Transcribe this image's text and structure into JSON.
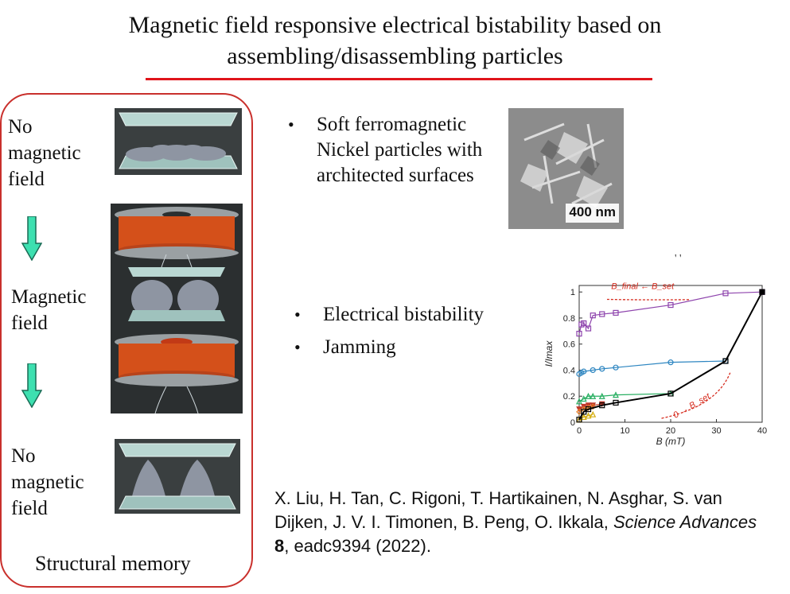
{
  "slide": {
    "title_line1": "Magnetic field responsive electrical bistability based on",
    "title_line2": "assembling/disassembling particles"
  },
  "memory_panel": {
    "state_top": [
      "No",
      "magnetic",
      "field"
    ],
    "state_middle": [
      "Magnetic",
      "field"
    ],
    "state_bottom": [
      "No",
      "magnetic",
      "field"
    ],
    "caption": "Structural memory"
  },
  "bullets_top": {
    "items": [
      "Soft ferromagnetic",
      "Nickel particles with",
      "architected surfaces"
    ]
  },
  "sem_image": {
    "scale_label": "400 nm"
  },
  "bullets_middle": {
    "items": [
      "Electrical bistability",
      "Jamming"
    ]
  },
  "stray_mark": "' '",
  "reference": {
    "authors": "X. Liu, H. Tan, C. Rigoni, T. Hartikainen, N. Asghar, S. van Dijken, J. V. I. Timonen, B. Peng, O. Ikkala,",
    "journal": "Science Advances",
    "volume": "8",
    "rest": ", eadc9394 (2022)."
  },
  "chart_data": {
    "type": "line",
    "xlabel": "B (mT)",
    "ylabel": "I/Imax",
    "xlim": [
      0,
      40
    ],
    "ylim": [
      0,
      1.05
    ],
    "xticks": [
      "0",
      "10",
      "20",
      "30",
      "40"
    ],
    "yticks": [
      "0",
      "0.2",
      "0.4",
      "0.6",
      "0.8",
      "1"
    ],
    "annotation_top": "B_final ← B_set",
    "annotation_bottom": "0 → B_set",
    "series": [
      {
        "color": "#8e44ad",
        "marker": "square",
        "x": [
          0,
          0.5,
          1,
          2,
          3,
          5,
          8,
          20,
          32,
          40
        ],
        "y": [
          0.68,
          0.75,
          0.76,
          0.72,
          0.82,
          0.83,
          0.84,
          0.9,
          0.99,
          1.0
        ]
      },
      {
        "color": "#2e86c1",
        "marker": "circle",
        "x": [
          0,
          0.5,
          1,
          3,
          5,
          8,
          20,
          32
        ],
        "y": [
          0.37,
          0.38,
          0.39,
          0.4,
          0.41,
          0.42,
          0.46,
          0.47
        ]
      },
      {
        "color": "#27ae60",
        "marker": "triangle",
        "x": [
          0,
          1,
          2,
          3,
          5,
          8,
          20
        ],
        "y": [
          0.16,
          0.18,
          0.2,
          0.2,
          0.2,
          0.21,
          0.22
        ]
      },
      {
        "color": "#c0392b",
        "marker": "triangle-down",
        "x": [
          0,
          1,
          2,
          3,
          5
        ],
        "y": [
          0.1,
          0.12,
          0.13,
          0.13,
          0.14
        ]
      },
      {
        "color": "#e67e22",
        "marker": "diamond",
        "x": [
          0,
          1,
          2,
          3
        ],
        "y": [
          0.08,
          0.1,
          0.11,
          0.12
        ]
      },
      {
        "color": "#d4ac0d",
        "marker": "triangle",
        "x": [
          0,
          1,
          2,
          3
        ],
        "y": [
          0.02,
          0.04,
          0.05,
          0.06
        ]
      },
      {
        "color": "#000000",
        "marker": "square",
        "x": [
          0,
          1,
          2,
          5,
          8,
          20,
          32,
          40
        ],
        "y": [
          0.02,
          0.08,
          0.1,
          0.13,
          0.15,
          0.22,
          0.47,
          1.0
        ]
      }
    ]
  }
}
